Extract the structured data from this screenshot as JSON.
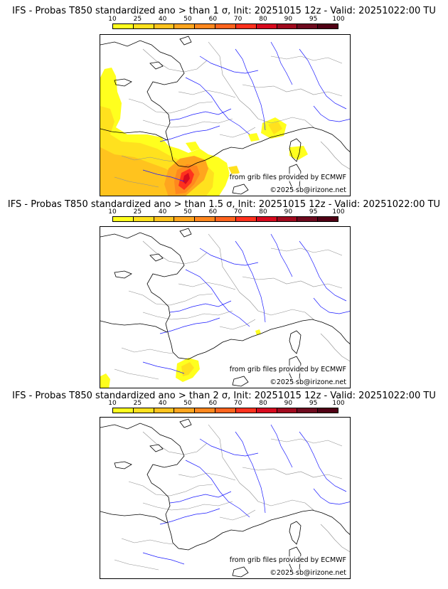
{
  "scale": {
    "ticks": [
      "10",
      "25",
      "40",
      "50",
      "60",
      "70",
      "80",
      "90",
      "95",
      "100"
    ],
    "colors": [
      "#ffff1e",
      "#ffe11e",
      "#ffc31e",
      "#ffa51e",
      "#ff871e",
      "#ff641e",
      "#ff321e",
      "#d70a1e",
      "#a00a1e",
      "#6e0a1e",
      "#500014"
    ]
  },
  "panels": [
    {
      "title": "IFS - Probas T850  standardized ano > than 1 σ, Init: 20251015 12z - Valid: 20251022:00 TU",
      "source_credit": "from grib files provided by ECMWF",
      "copyright": "©2025 sb@irizone.net",
      "intensity": "high"
    },
    {
      "title": "IFS - Probas T850  standardized ano > than 1.5 σ, Init: 20251015 12z - Valid: 20251022:00 TU",
      "source_credit": "from grib files provided by ECMWF",
      "copyright": "©2025 sb@irizone.net",
      "intensity": "low"
    },
    {
      "title": "IFS - Probas T850  standardized ano > than 2 σ, Init: 20251015 12z - Valid: 20251022:00 TU",
      "source_credit": "from grib files provided by ECMWF",
      "copyright": "©2025 sb@irizone.net",
      "intensity": "none"
    }
  ],
  "colors": {
    "coast": "#000000",
    "river": "#1a1aff",
    "border": "#909090"
  }
}
